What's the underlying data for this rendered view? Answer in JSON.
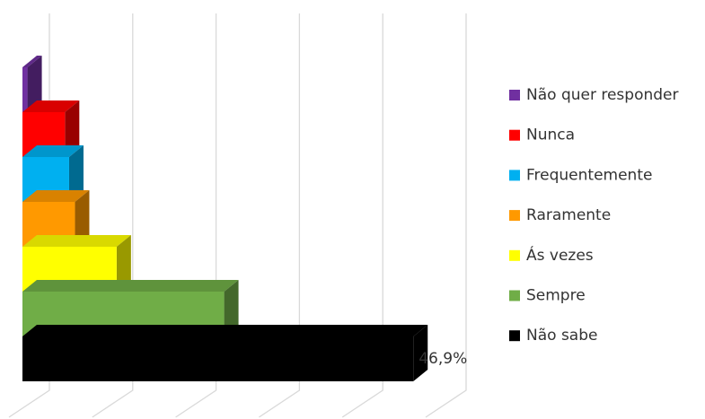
{
  "chart_data": {
    "type": "bar3d",
    "categories": [
      "Não quer responder",
      "Nunca",
      "Frequentemente",
      "Raramente",
      "Ás vezes",
      "Sempre",
      "Não sabe"
    ],
    "values": [
      0.6,
      5.1,
      5.6,
      6.3,
      11.3,
      24.2,
      46.9
    ],
    "value_labels": [
      null,
      null,
      null,
      null,
      null,
      null,
      "46,9%"
    ],
    "colors": [
      "#7030a0",
      "#ff0000",
      "#00b0f0",
      "#ff9900",
      "#ffff00",
      "#70ad47",
      "#000000"
    ],
    "xlim": [
      0,
      50
    ],
    "xticks": [
      0,
      10,
      20,
      30,
      40,
      50
    ],
    "grid": true,
    "legend": "right"
  }
}
